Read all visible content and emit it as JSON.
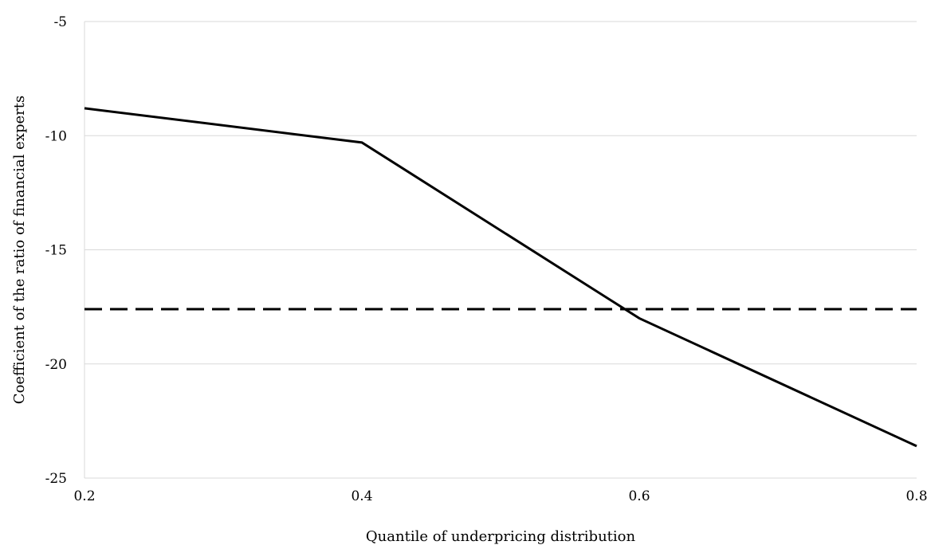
{
  "chart_data": {
    "type": "line",
    "title": "",
    "xlabel": "Quantile of underpricing distribution",
    "ylabel": "Coefficient of the ratio of financial experts",
    "x": [
      0.2,
      0.4,
      0.6,
      0.8
    ],
    "x_tick_labels": [
      "0.2",
      "0.4",
      "0.6",
      "0.8"
    ],
    "xlim": [
      0.2,
      0.8
    ],
    "y_ticks": [
      -5,
      -10,
      -15,
      -20,
      -25
    ],
    "y_tick_labels": [
      "-5",
      "-10",
      "-15",
      "-20",
      "-25"
    ],
    "ylim": [
      -25,
      -5
    ],
    "grid": "horizontal",
    "legend": "none",
    "series": [
      {
        "style": "solid",
        "color": "#000000",
        "values": [
          -8.8,
          -10.3,
          -18.0,
          -23.6
        ]
      },
      {
        "style": "dashed",
        "color": "#000000",
        "values": [
          -17.6,
          -17.6,
          -17.6,
          -17.6
        ]
      }
    ]
  }
}
